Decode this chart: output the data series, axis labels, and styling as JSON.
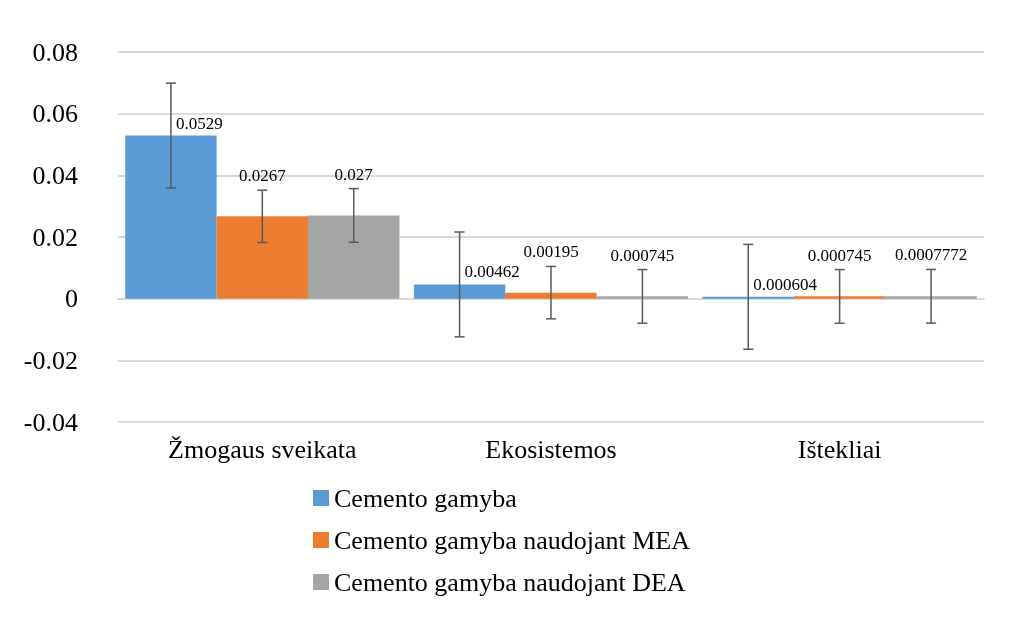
{
  "chart_data": {
    "type": "bar",
    "categories": [
      "Žmogaus sveikata",
      "Ekosistemos",
      "Ištekliai"
    ],
    "series": [
      {
        "name": "Cemento gamyba",
        "color": "#5b9bd5",
        "values": [
          0.0529,
          0.00462,
          0.000604
        ],
        "errors": [
          0.017,
          0.017,
          0.017
        ]
      },
      {
        "name": "Cemento gamyba naudojant MEA",
        "color": "#ed7d31",
        "values": [
          0.0267,
          0.00195,
          0.000745
        ],
        "errors": [
          0.0085,
          0.0085,
          0.0087
        ]
      },
      {
        "name": "Cemento gamyba naudojant DEA",
        "color": "#a5a5a5",
        "values": [
          0.027,
          0.000745,
          0.0007772
        ],
        "errors": [
          0.0087,
          0.0087,
          0.0087
        ]
      }
    ],
    "ylim": [
      -0.04,
      0.08
    ],
    "yticks": [
      -0.04,
      -0.02,
      0,
      0.02,
      0.04,
      0.06,
      0.08
    ],
    "grid": "y",
    "legend": "bottom",
    "data_labels": true
  }
}
